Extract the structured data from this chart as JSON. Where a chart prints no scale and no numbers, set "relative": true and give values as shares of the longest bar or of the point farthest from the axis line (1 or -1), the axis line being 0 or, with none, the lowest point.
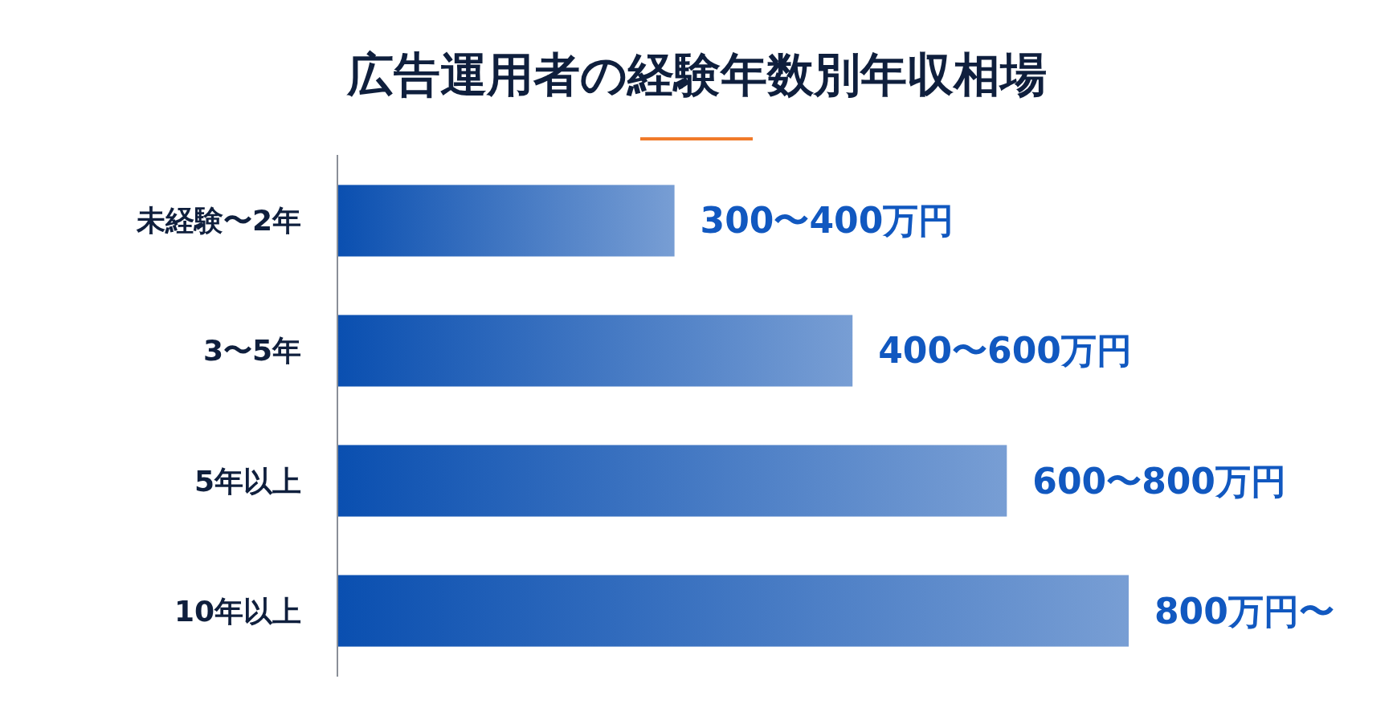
{
  "chart_data": {
    "type": "bar",
    "orientation": "horizontal",
    "relative": true,
    "title": "広告運用者の経験年数別年収相場",
    "categories": [
      "未経験〜2年",
      "3〜5年",
      "5年以上",
      "10年以上"
    ],
    "values": [
      0.426,
      0.651,
      0.846,
      1.0
    ],
    "annotations": [
      {
        "text": "300〜400万円",
        "x": 0.426,
        "y": "未経験〜2年"
      },
      {
        "text": "400〜600万円",
        "x": 0.651,
        "y": "3〜5年"
      },
      {
        "text": "600〜800万円",
        "x": 0.846,
        "y": "5年以上"
      },
      {
        "text": "800万円〜",
        "x": 1.0,
        "y": "10年以上"
      }
    ],
    "color": "#0a4fb0"
  }
}
